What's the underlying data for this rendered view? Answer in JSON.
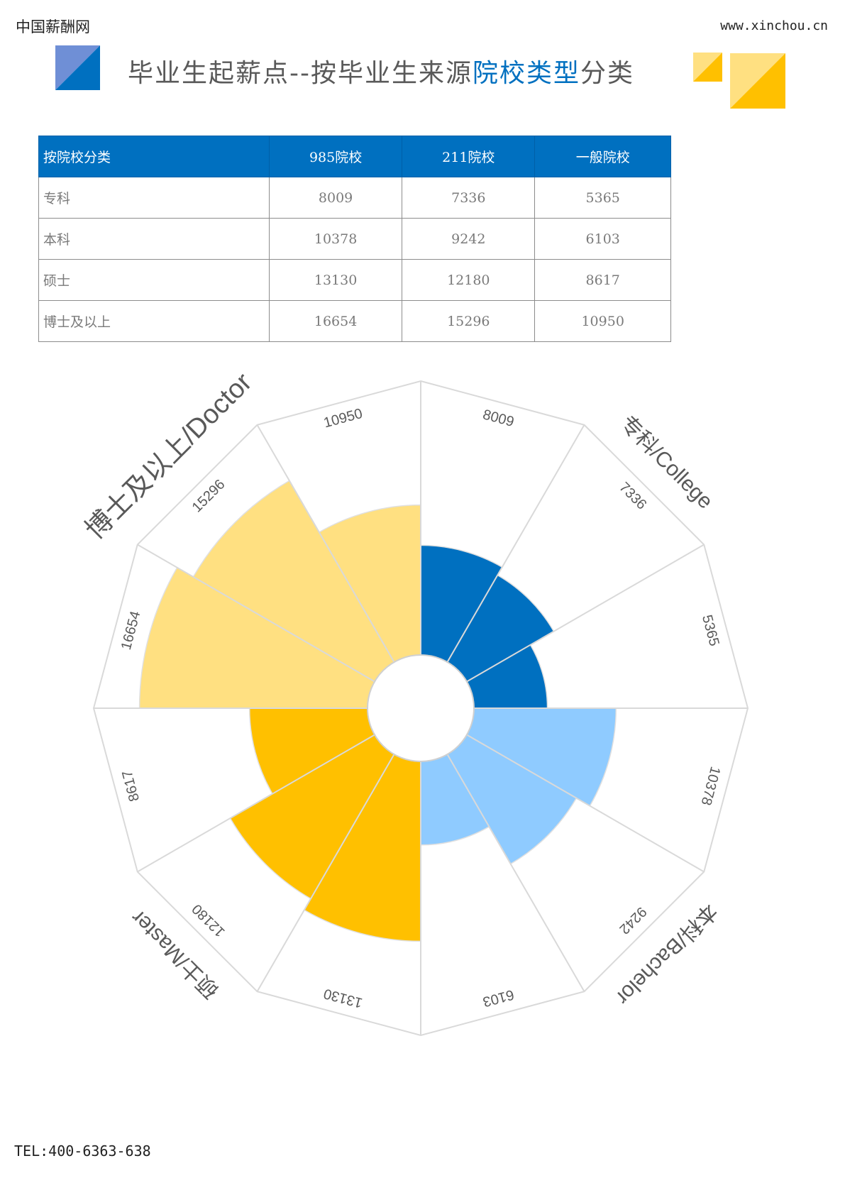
{
  "header": {
    "brand": "中国薪酬网",
    "url": "www.xinchou.cn",
    "title": [
      "毕业生起薪点--按毕业生来源",
      "院校类型",
      "分类"
    ]
  },
  "table": {
    "headers": [
      "按院校分类",
      "985院校",
      "211院校",
      "一般院校"
    ],
    "rows": [
      [
        "专科",
        8009,
        7336,
        5365
      ],
      [
        "本科",
        10378,
        9242,
        6103
      ],
      [
        "硕士",
        13130,
        12180,
        8617
      ],
      [
        "博士及以上",
        16654,
        15296,
        10950
      ]
    ]
  },
  "chart_data": {
    "type": "polar",
    "categories": [
      "专科/College",
      "本科/Bachelor",
      "硕士/Master",
      "博士及以上/Doctor"
    ],
    "colors": [
      "#0070c0",
      "#8fcbff",
      "#ffc000",
      "#ffe081"
    ],
    "rlim": [
      0,
      20000
    ]
  },
  "footer": {
    "tel": "TEL:400-6363-638"
  }
}
